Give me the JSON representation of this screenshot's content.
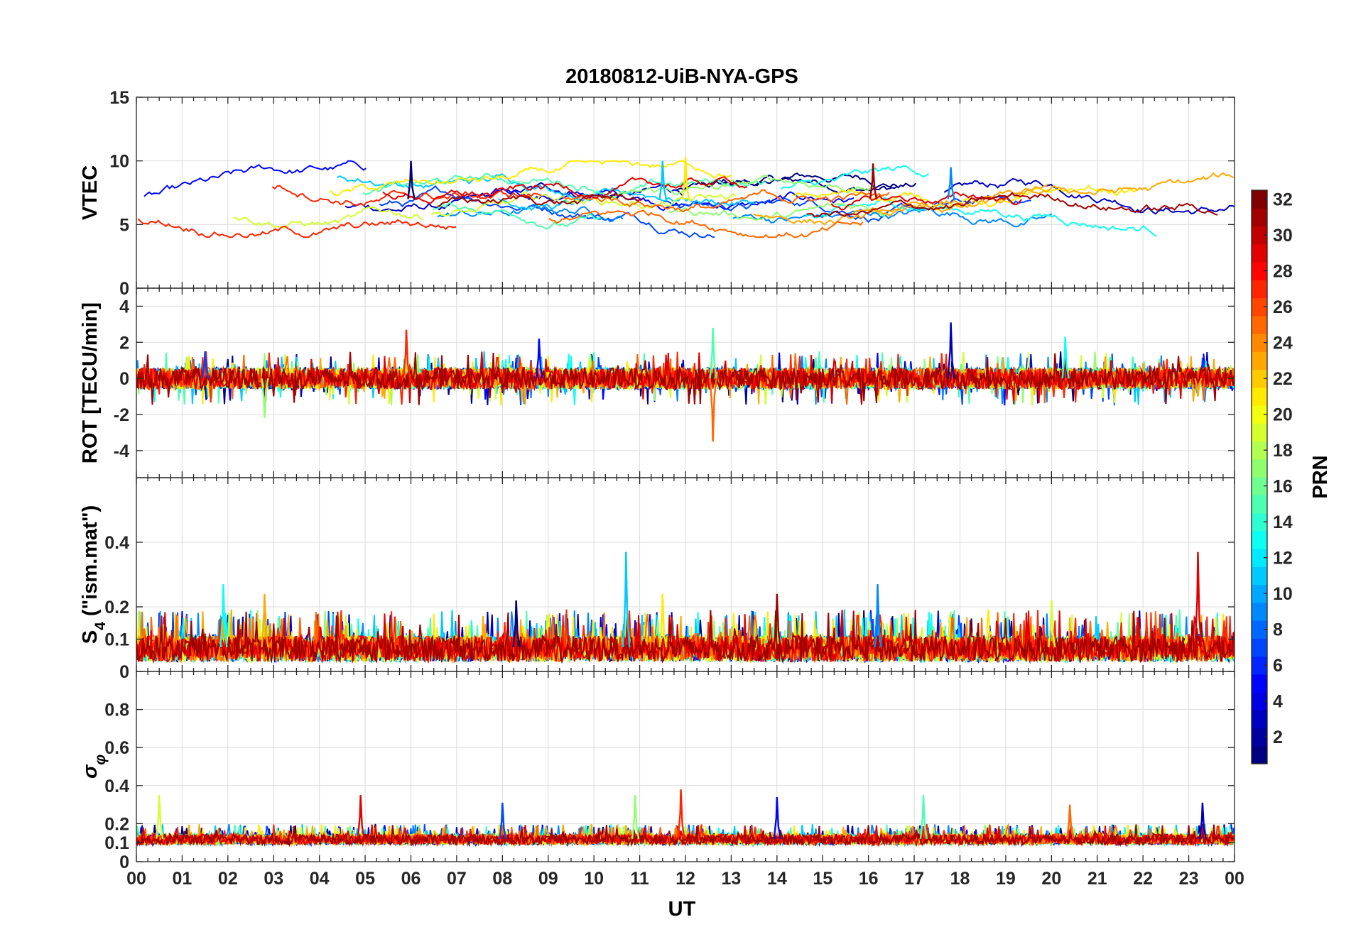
{
  "chart_data": {
    "type": "line",
    "title": "20180812-UiB-NYA-GPS",
    "xlabel": "UT",
    "x_ticks": [
      "00",
      "01",
      "02",
      "03",
      "04",
      "05",
      "06",
      "07",
      "08",
      "09",
      "10",
      "11",
      "12",
      "13",
      "14",
      "15",
      "16",
      "17",
      "18",
      "19",
      "20",
      "21",
      "22",
      "23",
      "00"
    ],
    "x_range_hours": [
      0,
      24
    ],
    "grid": true,
    "panels": [
      {
        "id": "vtec",
        "ylabel": "VTEC",
        "ylim": [
          0,
          15
        ],
        "yticks": [
          0,
          5,
          10,
          15
        ],
        "ytick_labels": [
          "0",
          "5",
          "10",
          "15"
        ],
        "typical_range": [
          4,
          10
        ],
        "spikes": [
          {
            "x": 6.0,
            "y": 10
          },
          {
            "x": 11.5,
            "y": 10
          },
          {
            "x": 12.0,
            "y": 10.3
          },
          {
            "x": 16.1,
            "y": 9.8
          },
          {
            "x": 17.8,
            "y": 9.5
          }
        ]
      },
      {
        "id": "rot",
        "ylabel": "ROT [TECU/min]",
        "ylim": [
          -5.5,
          5
        ],
        "yticks": [
          -4,
          -2,
          0,
          2,
          4
        ],
        "ytick_labels": [
          "-4",
          "-2",
          "0",
          "2",
          "4"
        ],
        "typical_range": [
          -0.6,
          0.6
        ],
        "spikes": [
          {
            "x": 1.5,
            "y": 1.5
          },
          {
            "x": 2.8,
            "y": -2.2
          },
          {
            "x": 5.9,
            "y": 2.7
          },
          {
            "x": 8.8,
            "y": 2.2
          },
          {
            "x": 12.6,
            "y": 2.8
          },
          {
            "x": 12.6,
            "y": -3.5
          },
          {
            "x": 17.8,
            "y": 3.1
          },
          {
            "x": 20.3,
            "y": 2.3
          },
          {
            "x": 23.2,
            "y": -1.0
          }
        ]
      },
      {
        "id": "s4",
        "ylabel": "S4 (\"ism.mat\")",
        "ylim": [
          0,
          0.6
        ],
        "yticks": [
          0,
          0.1,
          0.2,
          0.4
        ],
        "ytick_labels": [
          "0",
          "0.1",
          "0.2",
          "0.4"
        ],
        "typical_range": [
          0.03,
          0.12
        ],
        "spikes": [
          {
            "x": 1.9,
            "y": 0.27
          },
          {
            "x": 2.8,
            "y": 0.24
          },
          {
            "x": 8.3,
            "y": 0.22
          },
          {
            "x": 10.7,
            "y": 0.37
          },
          {
            "x": 11.5,
            "y": 0.24
          },
          {
            "x": 14.0,
            "y": 0.24
          },
          {
            "x": 16.2,
            "y": 0.27
          },
          {
            "x": 20.0,
            "y": 0.22
          },
          {
            "x": 23.2,
            "y": 0.37
          }
        ]
      },
      {
        "id": "sigma_phi",
        "ylabel": "σφ",
        "ylim": [
          0,
          1
        ],
        "yticks": [
          0,
          0.1,
          0.2,
          0.4,
          0.6,
          0.8
        ],
        "ytick_labels": [
          "0",
          "0.1",
          "0.2",
          "0.4",
          "0.6",
          "0.8"
        ],
        "typical_range": [
          0.09,
          0.15
        ],
        "spikes": [
          {
            "x": 0.5,
            "y": 0.35
          },
          {
            "x": 4.9,
            "y": 0.35
          },
          {
            "x": 8.0,
            "y": 0.31
          },
          {
            "x": 10.9,
            "y": 0.35
          },
          {
            "x": 11.9,
            "y": 0.38
          },
          {
            "x": 14.0,
            "y": 0.34
          },
          {
            "x": 17.2,
            "y": 0.35
          },
          {
            "x": 20.4,
            "y": 0.3
          },
          {
            "x": 23.3,
            "y": 0.31
          }
        ]
      }
    ],
    "colorbar": {
      "label": "PRN",
      "colormap": "jet",
      "range": [
        1,
        32
      ],
      "ticks": [
        2,
        4,
        6,
        8,
        10,
        12,
        14,
        16,
        18,
        20,
        22,
        24,
        26,
        28,
        30,
        32
      ],
      "tick_labels": [
        "2",
        "4",
        "6",
        "8",
        "10",
        "12",
        "14",
        "16",
        "18",
        "20",
        "22",
        "24",
        "26",
        "28",
        "30",
        "32"
      ]
    },
    "series_prn": [
      1,
      3,
      5,
      7,
      9,
      11,
      13,
      15,
      17,
      19,
      21,
      23,
      25,
      27,
      29,
      31
    ]
  }
}
